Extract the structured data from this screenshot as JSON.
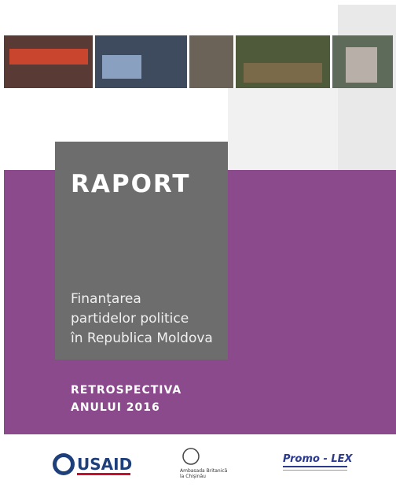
{
  "cover": {
    "title": "RAPORT",
    "subtitle_lines": [
      "Finanțarea",
      "partidelor politice",
      "în Republica Moldova"
    ],
    "retrospective_lines": [
      "RETROSPECTIVA",
      "ANULUI 2016"
    ],
    "logos": {
      "usaid": "USAID",
      "embassy": [
        "Ambasada Britanică",
        "la Chișinău"
      ],
      "promolex": "Promo - LEX"
    }
  }
}
